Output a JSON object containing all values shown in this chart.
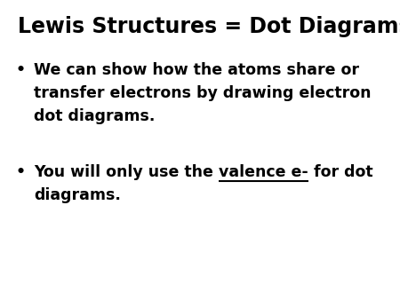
{
  "background_color": "#ffffff",
  "title": "Lewis Structures = Dot Diagrams",
  "title_fontsize": 17,
  "title_bold": true,
  "bullet1_lines": [
    "We can show how the atoms share or",
    "transfer electrons by drawing electron",
    "dot diagrams."
  ],
  "bullet2_line1_before": "You will only use the ",
  "bullet2_underline": "valence e-",
  "bullet2_line1_after": " for dot",
  "bullet2_line2": "diagrams.",
  "text_fontsize": 12.5,
  "text_color": "#000000",
  "background_color2": "#ffffff"
}
